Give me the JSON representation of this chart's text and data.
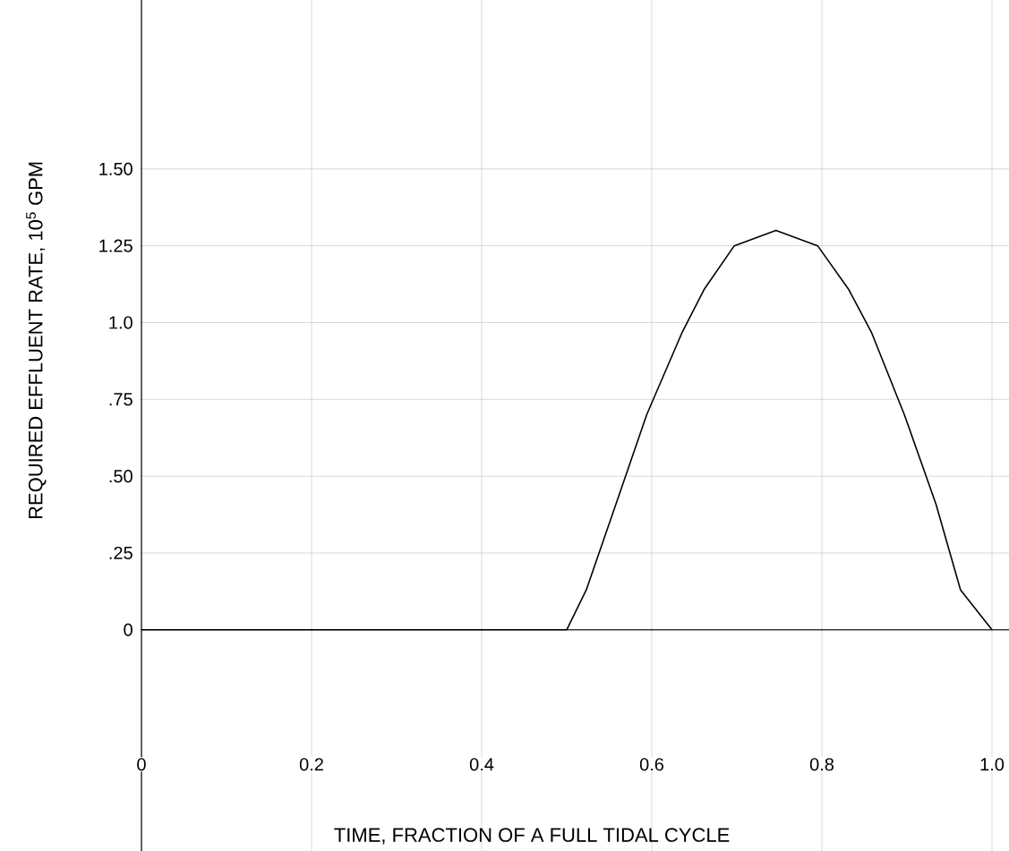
{
  "chart_data": {
    "type": "line",
    "xlabel": "TIME, FRACTION OF A FULL TIDAL CYCLE",
    "ylabel": "REQUIRED EFFLUENT RATE, 10$^{5}$ GPM",
    "x": [
      0,
      0.5,
      0.523,
      0.558,
      0.594,
      0.636,
      0.662,
      0.697,
      0.746,
      0.795,
      0.831,
      0.858,
      0.897,
      0.934,
      0.963,
      1.0
    ],
    "series": [
      {
        "color": "#000000",
        "values": [
          0,
          0,
          0.13,
          0.41,
          0.7,
          0.97,
          1.11,
          1.25,
          1.3,
          1.25,
          1.11,
          0.97,
          0.7,
          0.41,
          0.13,
          0
        ]
      }
    ],
    "xlim": [
      0,
      1.02
    ],
    "ylim": [
      -0.72,
      2.05
    ],
    "xticks": [
      0,
      0.2,
      0.4,
      0.6,
      0.8,
      {
        "value": 1,
        "label": "1.0"
      }
    ],
    "yticks": [
      0,
      {
        "value": 0.25,
        "label": ".25"
      },
      {
        "value": 0.5,
        "label": ".50"
      },
      {
        "value": 0.75,
        "label": ".75"
      },
      {
        "value": 1,
        "label": "1.0"
      },
      1.25,
      {
        "value": 1.5,
        "label": "1.50"
      }
    ],
    "grid": true
  }
}
